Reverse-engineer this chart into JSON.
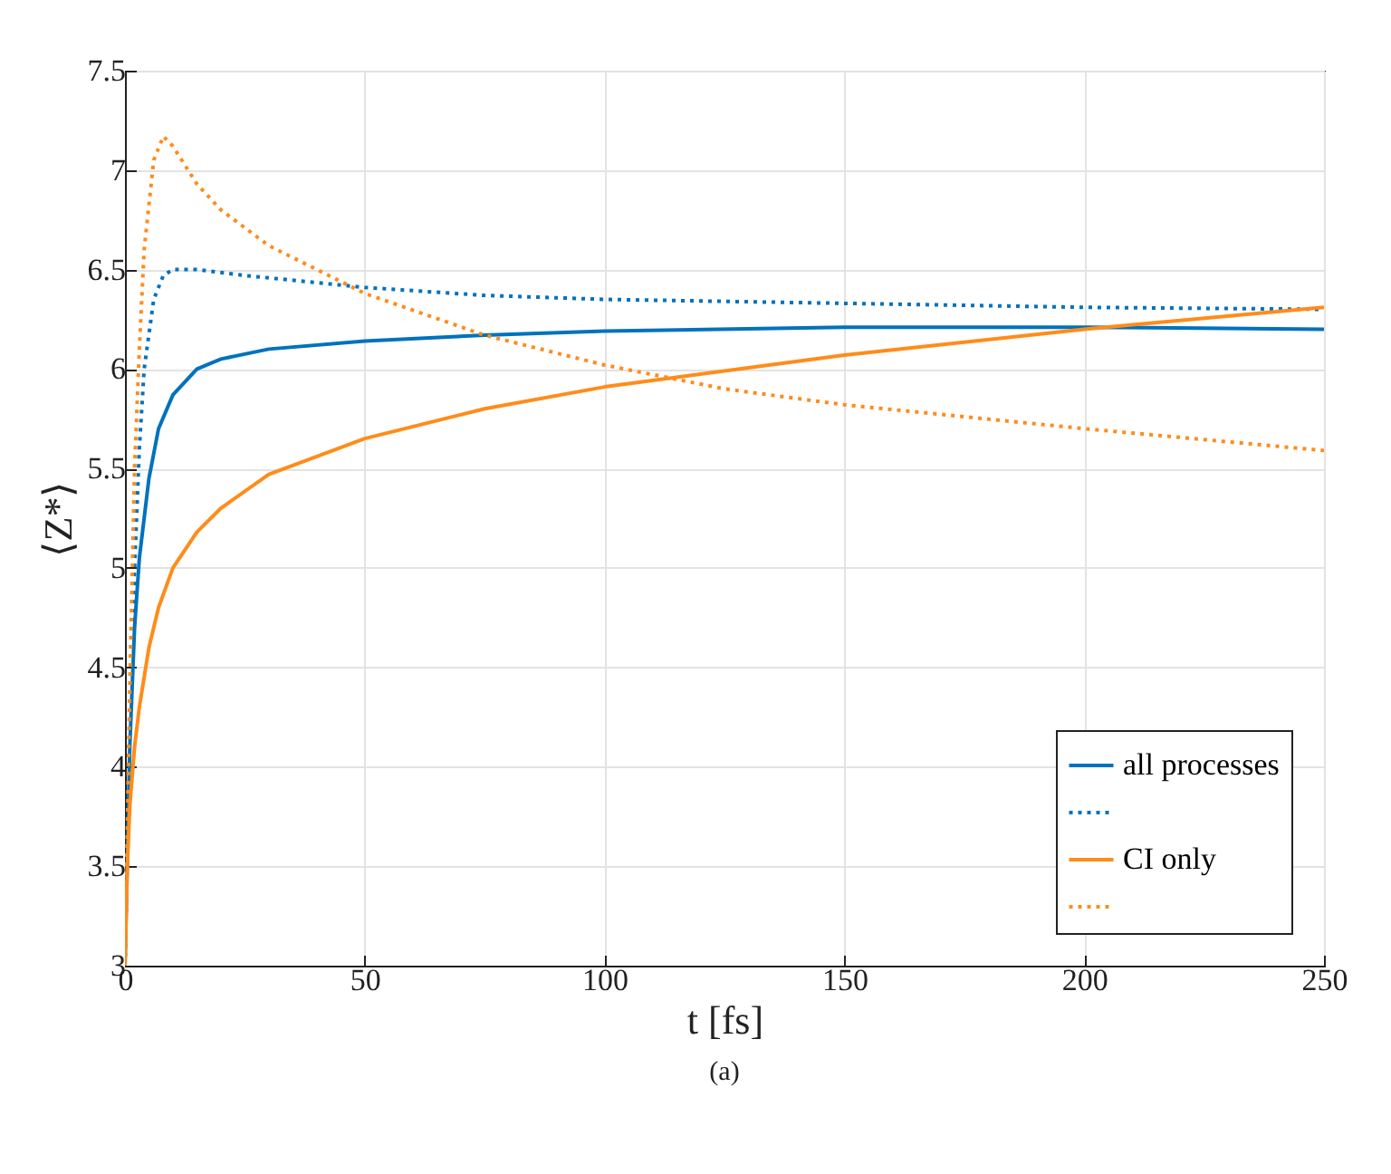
{
  "chart_data": {
    "type": "line",
    "xlabel": "t [fs]",
    "ylabel": "⟨Z*⟩",
    "annotations": [
      "(a)"
    ],
    "xlim": [
      0,
      250
    ],
    "ylim": [
      3,
      7.5
    ],
    "xticks": [
      0,
      50,
      100,
      150,
      200,
      250
    ],
    "yticks": [
      3,
      3.5,
      4,
      4.5,
      5,
      5.5,
      6,
      6.5,
      7,
      7.5
    ],
    "grid": true,
    "legend": "bottom right",
    "marker": "none",
    "series": [
      {
        "name": "all processes",
        "color": "#0072bd",
        "line_style": "solid",
        "x": [
          0,
          1,
          2,
          3,
          5,
          7,
          10,
          15,
          20,
          30,
          50,
          75,
          100,
          150,
          200,
          250
        ],
        "values": [
          3,
          4.1,
          4.7,
          5.05,
          5.45,
          5.7,
          5.87,
          6.0,
          6.05,
          6.1,
          6.14,
          6.17,
          6.19,
          6.21,
          6.21,
          6.2
        ]
      },
      {
        "color": "#0072bd",
        "line_style": "dotted",
        "x": [
          0,
          1,
          2,
          3,
          4,
          6,
          8,
          10,
          15,
          25,
          50,
          75,
          100,
          150,
          200,
          250
        ],
        "values": [
          3,
          4.2,
          5.0,
          5.6,
          6.0,
          6.35,
          6.47,
          6.5,
          6.5,
          6.47,
          6.41,
          6.37,
          6.35,
          6.33,
          6.31,
          6.3
        ]
      },
      {
        "name": "CI only",
        "color": "#ff8c1a",
        "line_style": "solid",
        "x": [
          0,
          0.5,
          1,
          2,
          3,
          5,
          7,
          10,
          15,
          20,
          30,
          50,
          75,
          100,
          150,
          200,
          250
        ],
        "values": [
          3,
          3.5,
          3.8,
          4.1,
          4.3,
          4.6,
          4.8,
          5.0,
          5.18,
          5.3,
          5.47,
          5.65,
          5.8,
          5.91,
          6.07,
          6.2,
          6.31
        ]
      },
      {
        "color": "#ff8c1a",
        "line_style": "dotted",
        "x": [
          0,
          1,
          2,
          3,
          4,
          6,
          8,
          10,
          15,
          20,
          30,
          50,
          75,
          100,
          125,
          150,
          200,
          250
        ],
        "values": [
          3,
          4.4,
          5.5,
          6.1,
          6.6,
          7.05,
          7.17,
          7.12,
          6.93,
          6.8,
          6.62,
          6.38,
          6.17,
          6.02,
          5.9,
          5.82,
          5.7,
          5.59
        ]
      }
    ]
  }
}
